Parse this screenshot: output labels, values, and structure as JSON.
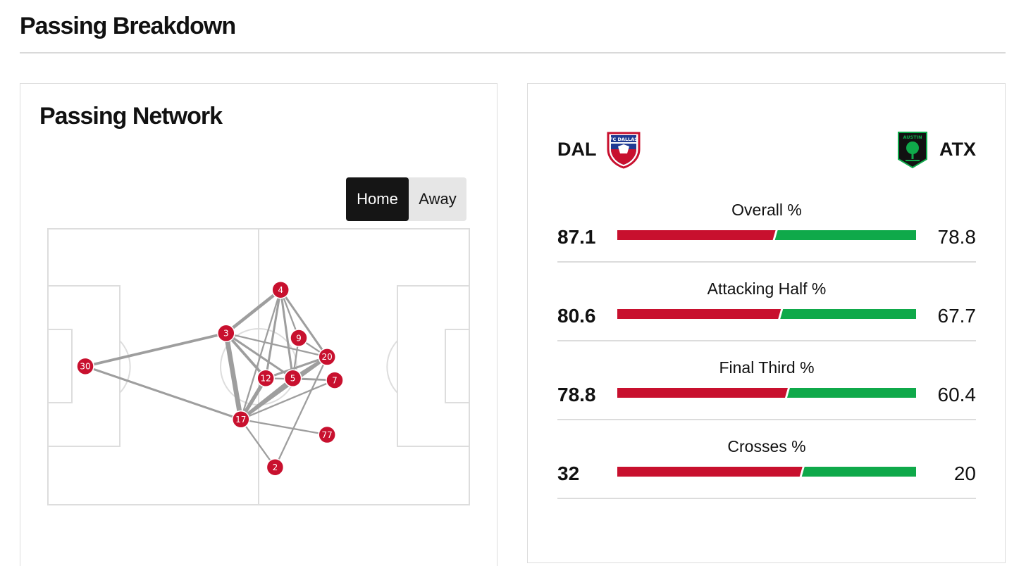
{
  "page": {
    "title": "Passing Breakdown"
  },
  "network": {
    "title": "Passing Network",
    "toggle": {
      "home_label": "Home",
      "away_label": "Away",
      "selected": "Home"
    },
    "node_color": "#c8102e",
    "line_color": "#9e9e9e",
    "players": [
      {
        "number": "4",
        "x": 55.2,
        "y": 22.2
      },
      {
        "number": "3",
        "x": 42.3,
        "y": 37.8
      },
      {
        "number": "9",
        "x": 59.5,
        "y": 39.5
      },
      {
        "number": "20",
        "x": 66.2,
        "y": 46.3
      },
      {
        "number": "30",
        "x": 9.0,
        "y": 49.7
      },
      {
        "number": "12",
        "x": 51.7,
        "y": 54.0
      },
      {
        "number": "5",
        "x": 58.1,
        "y": 54.0
      },
      {
        "number": "7",
        "x": 68.0,
        "y": 54.7
      },
      {
        "number": "17",
        "x": 45.8,
        "y": 68.8
      },
      {
        "number": "77",
        "x": 66.2,
        "y": 74.3
      },
      {
        "number": "2",
        "x": 53.9,
        "y": 86.0
      }
    ],
    "links": [
      {
        "from": "30",
        "to": "3",
        "weight": 4
      },
      {
        "from": "30",
        "to": "17",
        "weight": 3
      },
      {
        "from": "3",
        "to": "4",
        "weight": 5
      },
      {
        "from": "3",
        "to": "17",
        "weight": 8
      },
      {
        "from": "3",
        "to": "12",
        "weight": 4
      },
      {
        "from": "3",
        "to": "5",
        "weight": 3
      },
      {
        "from": "3",
        "to": "20",
        "weight": 2
      },
      {
        "from": "4",
        "to": "17",
        "weight": 2
      },
      {
        "from": "4",
        "to": "12",
        "weight": 3
      },
      {
        "from": "4",
        "to": "5",
        "weight": 3
      },
      {
        "from": "4",
        "to": "9",
        "weight": 2
      },
      {
        "from": "4",
        "to": "20",
        "weight": 3
      },
      {
        "from": "9",
        "to": "20",
        "weight": 2
      },
      {
        "from": "9",
        "to": "5",
        "weight": 2
      },
      {
        "from": "12",
        "to": "17",
        "weight": 6
      },
      {
        "from": "12",
        "to": "20",
        "weight": 3
      },
      {
        "from": "5",
        "to": "17",
        "weight": 5
      },
      {
        "from": "5",
        "to": "20",
        "weight": 4
      },
      {
        "from": "5",
        "to": "7",
        "weight": 2
      },
      {
        "from": "17",
        "to": "20",
        "weight": 5
      },
      {
        "from": "17",
        "to": "7",
        "weight": 2
      },
      {
        "from": "17",
        "to": "77",
        "weight": 2
      },
      {
        "from": "17",
        "to": "2",
        "weight": 2
      },
      {
        "from": "2",
        "to": "20",
        "weight": 2
      },
      {
        "from": "12",
        "to": "7",
        "weight": 2
      }
    ]
  },
  "stats": {
    "home": {
      "abbr": "DAL",
      "color": "#c8102e",
      "crest_text": "FC DALLAS"
    },
    "away": {
      "abbr": "ATX",
      "color": "#0fa94a",
      "crest_text": "AUSTIN"
    },
    "rows": [
      {
        "label": "Overall %",
        "home": "87.1",
        "away": "78.8",
        "home_share": 0.525
      },
      {
        "label": "Attacking Half %",
        "home": "80.6",
        "away": "67.7",
        "home_share": 0.543
      },
      {
        "label": "Final Third %",
        "home": "78.8",
        "away": "60.4",
        "home_share": 0.566
      },
      {
        "label": "Crosses %",
        "home": "32",
        "away": "20",
        "home_share": 0.615
      }
    ]
  }
}
